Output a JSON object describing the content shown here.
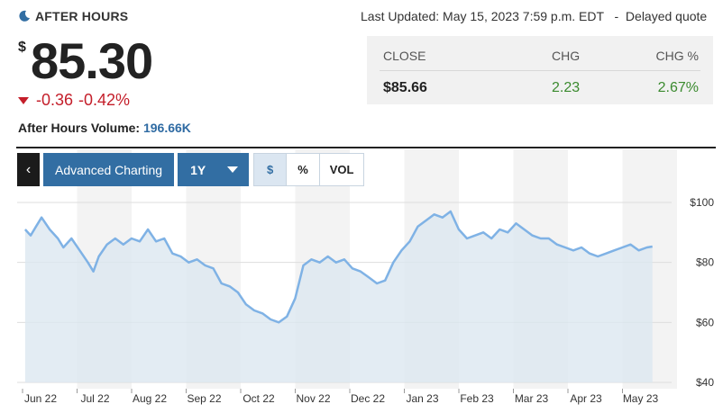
{
  "header": {
    "session_label": "AFTER HOURS",
    "last_updated": "Last Updated: May 15, 2023 7:59 p.m. EDT",
    "separator": "-",
    "delayed": "Delayed quote"
  },
  "quote": {
    "currency": "$",
    "price": "85.30",
    "change": "-0.36",
    "change_pct": "-0.42%",
    "volume_label": "After Hours Volume:",
    "volume_value": "196.66K",
    "down_color": "#c41e2a"
  },
  "close_table": {
    "headers": [
      "CLOSE",
      "CHG",
      "CHG %"
    ],
    "values": [
      "$85.66",
      "2.23",
      "2.67%"
    ],
    "up_color": "#3a8a2e"
  },
  "toolbar": {
    "back_icon": "chevron-left-icon",
    "back_glyph": "‹",
    "advanced_label": "Advanced Charting",
    "range_label": "1Y",
    "dollar_label": "$",
    "percent_label": "%",
    "vol_label": "VOL"
  },
  "chart_data": {
    "type": "area",
    "x_tick_labels": [
      "Jun 22",
      "Jul 22",
      "Aug 22",
      "Sep 22",
      "Oct 22",
      "Nov 22",
      "Dec 22",
      "Jan 23",
      "Feb 23",
      "Mar 23",
      "Apr 23",
      "May 23"
    ],
    "y_tick_labels": [
      "$100",
      "$80",
      "$60",
      "$40"
    ],
    "ylim": [
      40,
      100
    ],
    "y_ticks": [
      100,
      80,
      60,
      40
    ],
    "grid": true,
    "line_color": "#7fb2e5",
    "fill_color": "#dce7f0",
    "band_color": "#f3f3f3",
    "x_months": [
      0,
      1,
      2,
      3,
      4,
      5,
      6,
      7,
      8,
      9,
      10,
      11
    ],
    "series": [
      {
        "x": [
          -0.15,
          -0.05,
          0.05,
          0.15,
          0.3,
          0.45,
          0.55,
          0.7,
          0.85,
          1.0,
          1.1,
          1.2,
          1.35,
          1.5,
          1.65,
          1.8,
          1.95,
          2.1,
          2.25,
          2.4,
          2.55,
          2.7,
          2.85,
          3.0,
          3.15,
          3.3,
          3.45,
          3.6,
          3.75,
          3.9,
          4.05,
          4.2,
          4.35,
          4.5,
          4.65,
          4.8,
          4.95,
          5.1,
          5.25,
          5.4,
          5.55,
          5.7,
          5.85,
          6.0,
          6.15,
          6.3,
          6.45,
          6.6,
          6.75,
          6.9,
          7.05,
          7.2,
          7.35,
          7.5,
          7.65,
          7.8,
          7.95,
          8.1,
          8.25,
          8.4,
          8.55,
          8.7,
          8.85,
          9.0,
          9.15,
          9.3,
          9.45,
          9.6,
          9.75,
          9.9,
          10.05,
          10.2,
          10.35,
          10.5,
          10.65,
          10.8,
          10.95,
          11.1,
          11.25,
          11.35
        ],
        "y": [
          91,
          89,
          92,
          95,
          91,
          88,
          85,
          88,
          84,
          80,
          77,
          82,
          86,
          88,
          86,
          88,
          87,
          91,
          87,
          88,
          83,
          82,
          80,
          81,
          79,
          78,
          73,
          72,
          70,
          66,
          64,
          63,
          61,
          60,
          62,
          68,
          79,
          81,
          80,
          82,
          80,
          81,
          78,
          77,
          75,
          73,
          74,
          80,
          84,
          87,
          92,
          94,
          96,
          95,
          97,
          91,
          88,
          89,
          90,
          88,
          91,
          90,
          93,
          91,
          89,
          88,
          88,
          86,
          85,
          84,
          85,
          83,
          82,
          83,
          84,
          85,
          86,
          84,
          85,
          85.3
        ]
      }
    ]
  }
}
